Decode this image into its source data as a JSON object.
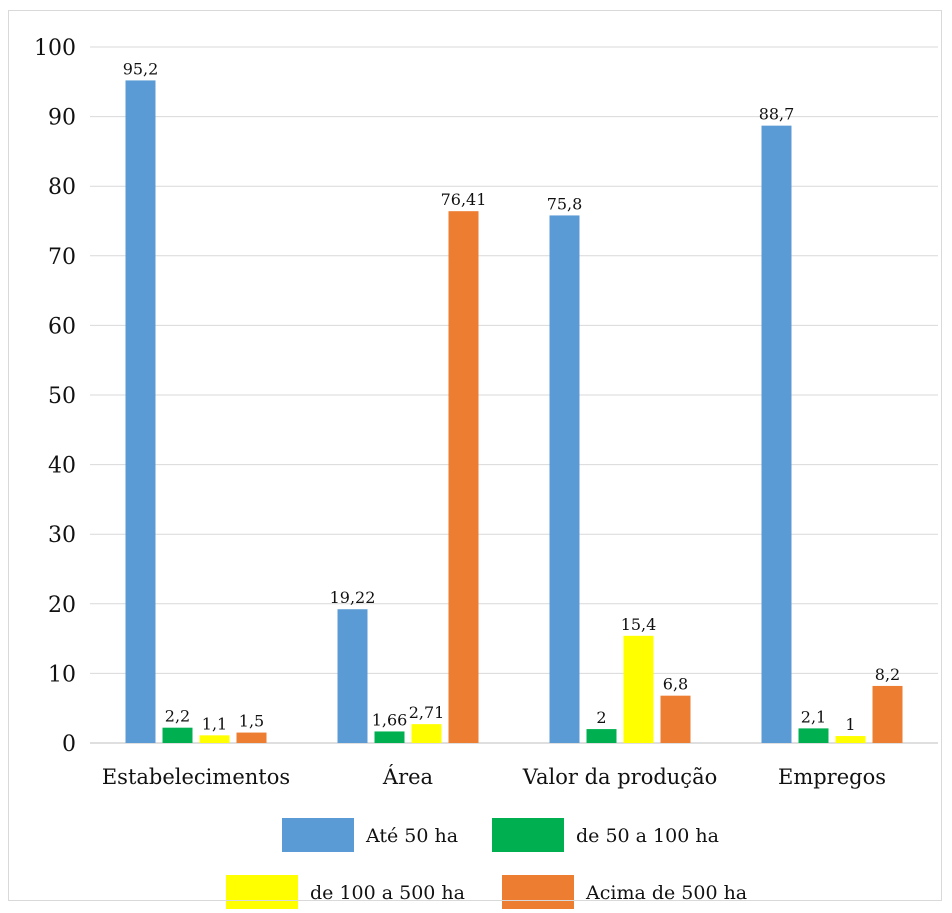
{
  "chart_data": {
    "type": "bar",
    "categories": [
      "Estabelecimentos",
      "Área",
      "Valor da produção",
      "Empregos"
    ],
    "series": [
      {
        "name": "Até 50 ha",
        "color": "#5B9BD5",
        "values": [
          95.2,
          19.22,
          75.8,
          88.7
        ],
        "labels": [
          "95,2",
          "19,22",
          "75,8",
          "88,7"
        ]
      },
      {
        "name": "de 50 a 100 ha",
        "color": "#00B050",
        "values": [
          2.2,
          1.66,
          2,
          2.1
        ],
        "labels": [
          "2,2",
          "1,66",
          "2",
          "2,1"
        ]
      },
      {
        "name": "de 100 a 500 ha",
        "color": "#FFFF00",
        "values": [
          1.1,
          2.71,
          15.4,
          1
        ],
        "labels": [
          "1,1",
          "2,71",
          "15,4",
          "1"
        ]
      },
      {
        "name": "Acima de 500 ha",
        "color": "#ED7D31",
        "values": [
          1.5,
          76.41,
          6.8,
          8.2
        ],
        "labels": [
          "1,5",
          "76,41",
          "6,8",
          "8,2"
        ]
      }
    ],
    "y_ticks": [
      "0",
      "10",
      "20",
      "30",
      "40",
      "50",
      "60",
      "70",
      "80",
      "90",
      "100"
    ],
    "ylim": [
      0,
      100
    ],
    "grid": true,
    "legend_position": "bottom"
  }
}
